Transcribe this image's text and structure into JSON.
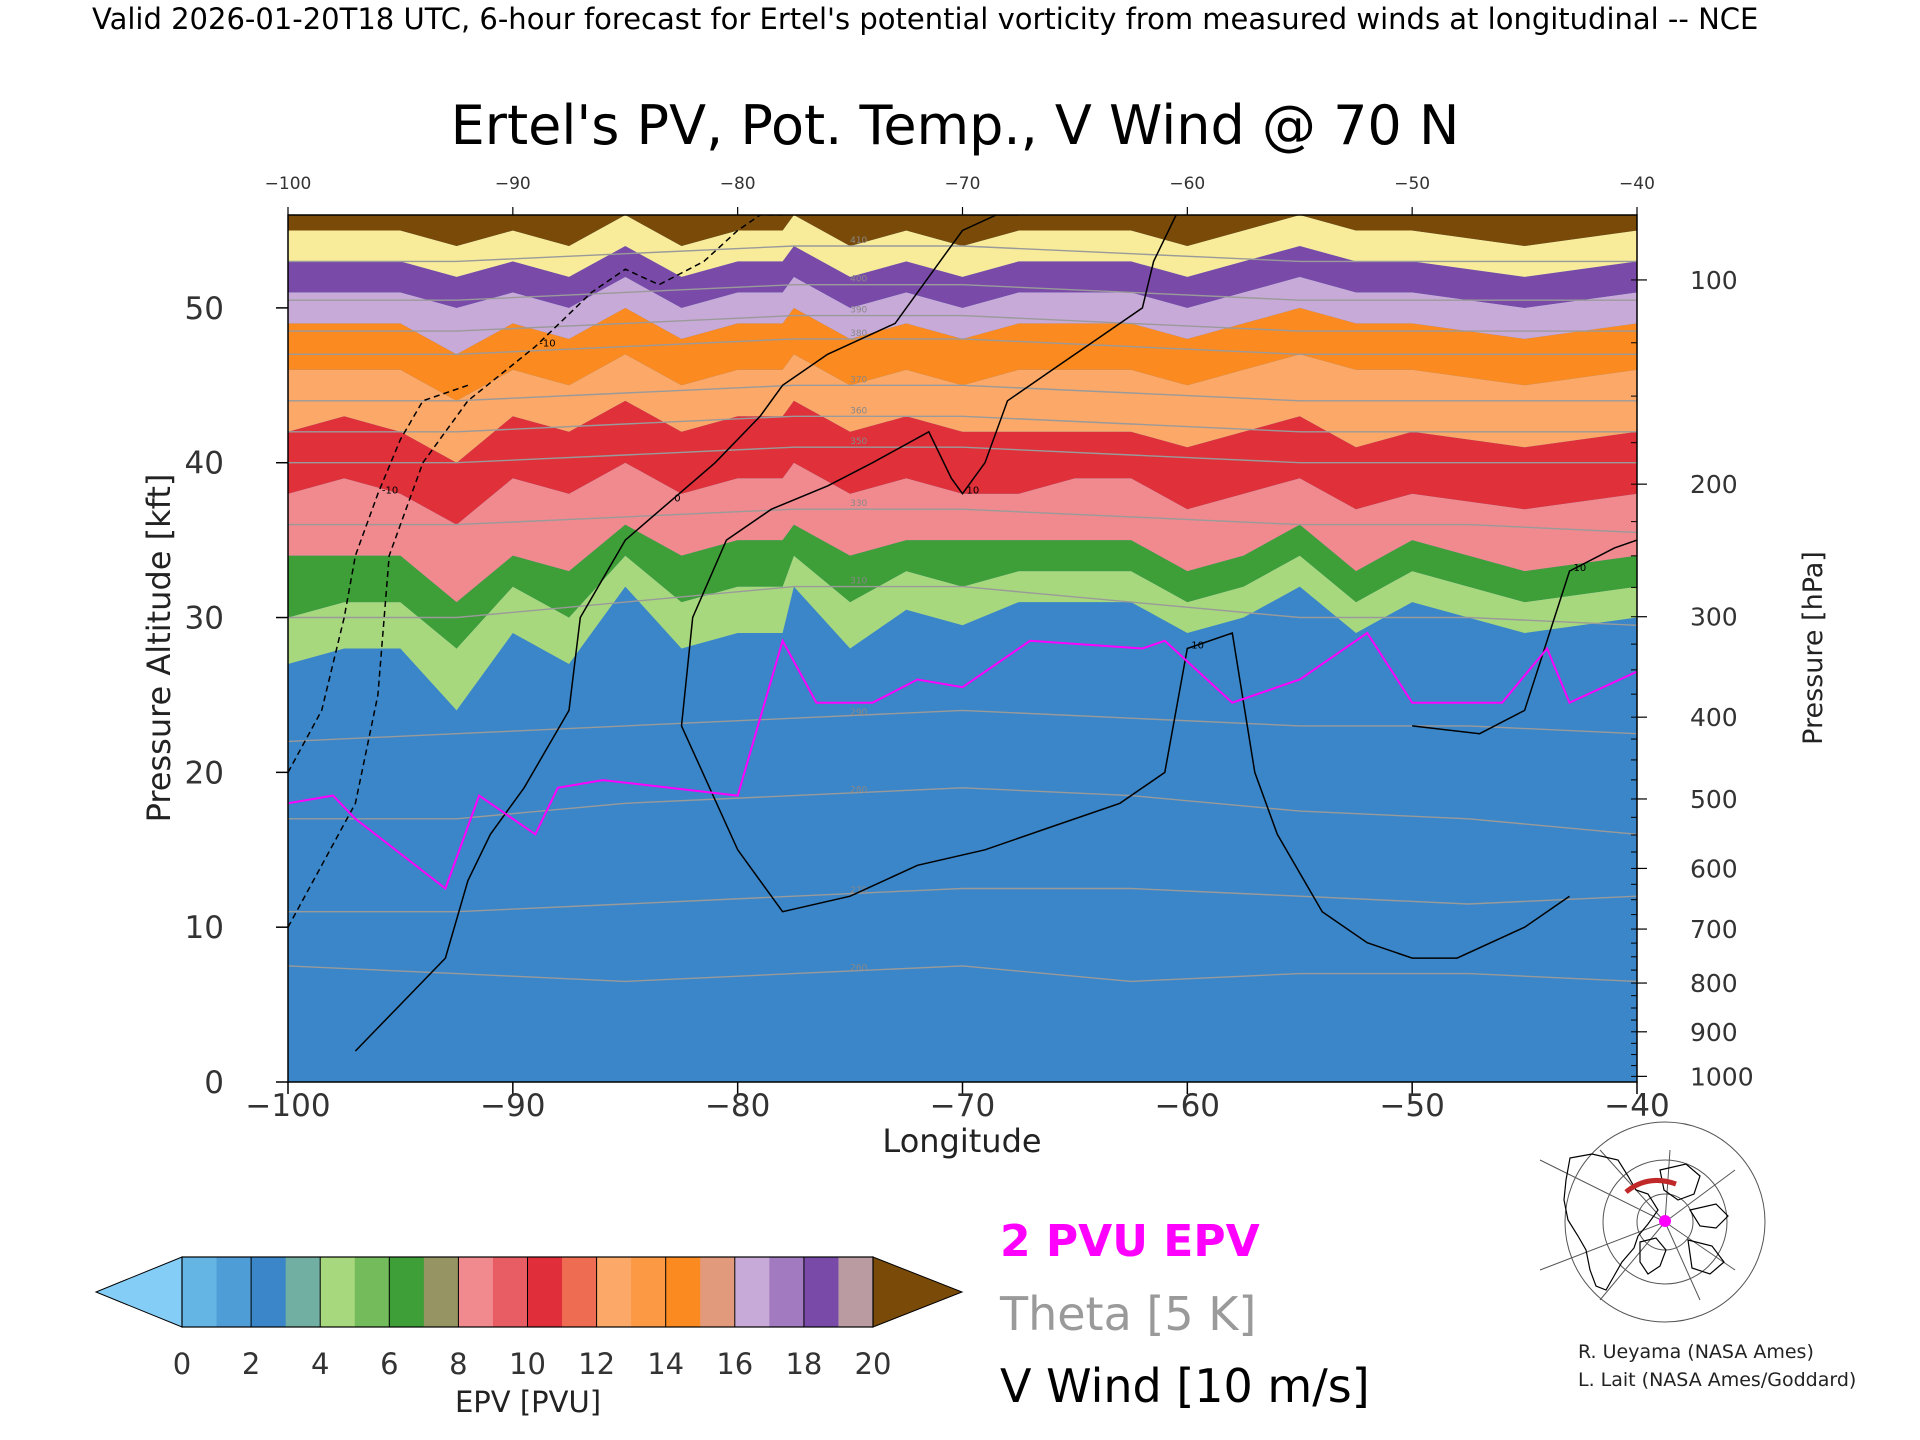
{
  "header": {
    "valid_line": "Valid 2026-01-20T18 UTC, 6-hour forecast for Ertel's potential vorticity from measured winds at longitudinal -- NCE"
  },
  "chart_data": {
    "type": "heatmap",
    "title": "Ertel's PV, Pot. Temp., V Wind @ 70 N",
    "xlabel": "Longitude",
    "ylabel_left": "Pressure Altitude [kft]",
    "ylabel_right": "Pressure [hPa]",
    "xlim": [
      -100,
      -40
    ],
    "ylim": [
      0,
      56
    ],
    "x_ticks": [
      -100,
      -90,
      -80,
      -70,
      -60,
      -50,
      -40
    ],
    "x_tick_labels": [
      "−100",
      "−90",
      "−80",
      "−70",
      "−60",
      "−50",
      "−40"
    ],
    "top_tick_labels": [
      "−100",
      "−90",
      "−80",
      "−70",
      "−60",
      "−50",
      "−40"
    ],
    "y_ticks": [
      0,
      10,
      20,
      30,
      40,
      50
    ],
    "y_tick_labels": [
      "0",
      "10",
      "20",
      "30",
      "40",
      "50"
    ],
    "pressure_ticks": [
      {
        "hpa": 100,
        "label": "100"
      },
      {
        "hpa": 200,
        "label": "200"
      },
      {
        "hpa": 300,
        "label": "300"
      },
      {
        "hpa": 400,
        "label": "400"
      },
      {
        "hpa": 500,
        "label": "500"
      },
      {
        "hpa": 600,
        "label": "600"
      },
      {
        "hpa": 700,
        "label": "700"
      },
      {
        "hpa": 800,
        "label": "800"
      },
      {
        "hpa": 900,
        "label": "900"
      },
      {
        "hpa": 1000,
        "label": "1000"
      }
    ],
    "epv_bands": [
      {
        "pvu": 0,
        "kft": [
          18,
          18.5,
          17,
          12.5,
          18.5,
          16,
          19.5,
          19.5,
          18.5,
          18.5,
          29,
          24.5,
          26,
          25.5,
          28,
          28.5,
          28,
          24.5,
          26,
          29,
          24.5,
          28,
          24.5,
          26.5
        ]
      },
      {
        "pvu": 2,
        "kft": [
          27,
          28,
          28,
          24,
          29,
          27,
          32,
          28,
          29,
          29,
          32,
          28,
          30.5,
          29.5,
          31,
          31,
          31,
          29,
          30,
          32,
          29,
          31,
          29,
          30
        ]
      },
      {
        "pvu": 4,
        "kft": [
          30,
          31,
          31,
          28,
          32,
          30,
          34,
          31,
          32,
          32,
          34,
          31,
          33,
          32,
          33,
          33,
          33,
          31,
          32,
          34,
          31,
          33,
          31,
          32
        ]
      },
      {
        "pvu": 6,
        "kft": [
          34,
          34,
          34,
          31,
          34,
          33,
          36,
          34,
          35,
          35,
          36,
          34,
          35,
          35,
          35,
          35,
          35,
          33,
          34,
          36,
          33,
          35,
          33,
          34
        ]
      },
      {
        "pvu": 8,
        "kft": [
          38,
          39,
          38,
          36,
          39,
          38,
          40,
          38,
          39,
          39,
          40,
          38,
          39,
          38,
          38,
          39,
          39,
          37,
          38,
          39,
          37,
          38,
          37,
          38
        ]
      },
      {
        "pvu": 10,
        "kft": [
          42,
          43,
          42,
          40,
          43,
          42,
          44,
          42,
          43,
          43,
          44,
          42,
          43,
          42,
          42,
          42,
          42,
          41,
          42,
          43,
          41,
          42,
          41,
          42
        ]
      },
      {
        "pvu": 12,
        "kft": [
          46,
          46,
          46,
          44,
          46,
          45,
          47,
          45,
          46,
          46,
          47,
          45,
          46,
          45,
          46,
          46,
          46,
          45,
          46,
          47,
          46,
          46,
          45,
          46
        ]
      },
      {
        "pvu": 14,
        "kft": [
          49,
          49,
          49,
          47,
          49,
          48,
          50,
          48,
          49,
          49,
          50,
          48,
          49,
          48,
          49,
          49,
          49,
          48,
          49,
          50,
          49,
          49,
          48,
          49
        ]
      },
      {
        "pvu": 16,
        "kft": [
          51,
          51,
          51,
          50,
          51,
          50,
          52,
          50,
          51,
          51,
          52,
          50,
          51,
          50,
          51,
          51,
          51,
          50,
          51,
          52,
          51,
          51,
          50,
          51
        ]
      },
      {
        "pvu": 18,
        "kft": [
          53,
          53,
          53,
          52,
          53,
          52,
          54,
          52,
          53,
          53,
          54,
          52,
          53,
          52,
          53,
          53,
          53,
          52,
          53,
          54,
          53,
          53,
          52,
          53
        ]
      },
      {
        "pvu": 20,
        "kft": [
          55,
          55,
          55,
          54,
          55,
          54,
          56,
          54,
          55,
          55,
          56,
          54,
          55,
          54,
          55,
          55,
          55,
          54,
          55,
          56,
          55,
          55,
          54,
          55
        ]
      }
    ],
    "epv_lons": [
      -100,
      -97.5,
      -95,
      -92.5,
      -90,
      -87.5,
      -85,
      -82.5,
      -80,
      -78,
      -77.5,
      -75,
      -72.5,
      -70,
      -67.5,
      -65,
      -62.5,
      -60,
      -57.5,
      -55,
      -52.5,
      -50,
      -45,
      -40
    ],
    "pv2_line": {
      "name": "2 PVU EPV",
      "lon": [
        -100,
        -98,
        -97,
        -93,
        -91.5,
        -89,
        -88,
        -86,
        -80,
        -78,
        -76.5,
        -74,
        -72,
        -70,
        -67,
        -62,
        -61,
        -58,
        -55,
        -52,
        -50,
        -46,
        -44,
        -43,
        -40
      ],
      "kft": [
        18,
        18.5,
        17,
        12.5,
        18.5,
        16,
        19,
        19.5,
        18.5,
        28.5,
        24.5,
        24.5,
        26,
        25.5,
        28.5,
        28,
        28.5,
        24.5,
        26,
        29,
        24.5,
        24.5,
        28,
        24.5,
        26.5
      ]
    },
    "theta_levels": [
      {
        "label": "260",
        "kft": [
          7.5,
          7,
          6.5,
          7,
          7.5,
          6.5,
          7,
          7,
          6.5
        ]
      },
      {
        "label": "270",
        "kft": [
          11,
          11,
          11.5,
          12,
          12.5,
          12.5,
          12,
          11.5,
          12
        ]
      },
      {
        "label": "280",
        "kft": [
          17,
          17,
          18,
          18.5,
          19,
          18.5,
          17.5,
          17,
          16
        ]
      },
      {
        "label": "290",
        "kft": [
          22,
          22.5,
          23,
          23.5,
          24,
          23.5,
          23,
          23,
          22.5
        ]
      },
      {
        "label": "310",
        "kft": [
          30,
          30,
          31,
          32,
          32,
          31,
          30,
          30,
          29.5
        ]
      },
      {
        "label": "330",
        "kft": [
          36,
          36,
          36.5,
          37,
          37,
          36.5,
          36,
          36,
          35.5
        ]
      },
      {
        "label": "350",
        "kft": [
          40,
          40,
          40.5,
          41,
          41,
          40.5,
          40,
          40,
          40
        ]
      },
      {
        "label": "360",
        "kft": [
          42,
          42,
          42.5,
          43,
          43,
          42.5,
          42,
          42,
          42
        ]
      },
      {
        "label": "370",
        "kft": [
          44,
          44,
          44.5,
          45,
          45,
          44.5,
          44,
          44,
          44
        ]
      },
      {
        "label": "380",
        "kft": [
          47,
          47,
          47.5,
          48,
          48,
          47.5,
          47,
          47,
          47
        ]
      },
      {
        "label": "390",
        "kft": [
          48.5,
          48.5,
          49,
          49.5,
          49.5,
          49,
          48.5,
          48.5,
          48.5
        ]
      },
      {
        "label": "400",
        "kft": [
          50.5,
          50.5,
          51,
          51.5,
          51.5,
          51,
          50.5,
          50.5,
          50.5
        ]
      },
      {
        "label": "410",
        "kft": [
          53,
          53,
          53.5,
          54,
          54,
          53.5,
          53,
          53,
          53
        ]
      }
    ],
    "theta_lons": [
      -100,
      -92.5,
      -85,
      -77.5,
      -70,
      -62.5,
      -55,
      -47.5,
      -40
    ],
    "v_wind_contours": [
      {
        "label": "0",
        "dashed": false,
        "lon": [
          -97,
          -95,
          -93,
          -92,
          -91,
          -89.5,
          -87.5,
          -87,
          -85,
          -83,
          -81,
          -79,
          -78,
          -76,
          -73,
          -71,
          -70,
          -68.5,
          -67.5
        ],
        "kft": [
          2,
          5,
          8,
          13,
          16,
          19,
          24,
          30,
          35,
          37.5,
          40,
          43,
          45,
          47,
          49,
          53,
          55,
          56,
          56
        ]
      },
      {
        "label": "10",
        "dashed": false,
        "lon": [
          -82.5,
          -82,
          -80.5,
          -78.5,
          -76,
          -74,
          -71.5,
          -70.5,
          -70,
          -69,
          -68,
          -66,
          -64,
          -62,
          -61.5,
          -60.5
        ],
        "kft": [
          23,
          30,
          35,
          37,
          38.5,
          40,
          42,
          39,
          38,
          40,
          44,
          46,
          48,
          50,
          53,
          56
        ]
      },
      {
        "label": "10",
        "dashed": false,
        "lon": [
          -82.5,
          -80,
          -78,
          -75,
          -72,
          -69,
          -66,
          -63,
          -61,
          -60,
          -58,
          -57,
          -56,
          -54,
          -52,
          -50,
          -48,
          -45,
          -43
        ],
        "kft": [
          23,
          15,
          11,
          12,
          14,
          15,
          16.5,
          18,
          20,
          28,
          29,
          20,
          16,
          11,
          9,
          8,
          8,
          10,
          12
        ]
      },
      {
        "label": "10",
        "dashed": false,
        "lon": [
          -50,
          -47,
          -45,
          -43,
          -41,
          -40
        ],
        "kft": [
          23,
          22.5,
          24,
          33,
          34.5,
          35
        ]
      },
      {
        "label": "-10",
        "dashed": true,
        "lon": [
          -100,
          -98.5,
          -97,
          -96,
          -95.5,
          -94,
          -92,
          -89,
          -86.5,
          -85,
          -83.5,
          -81.5,
          -80,
          -79,
          -78
        ],
        "kft": [
          10,
          14,
          18,
          25,
          34,
          40,
          44,
          47.5,
          51,
          52.5,
          51.5,
          53,
          55,
          56,
          56
        ]
      },
      {
        "label": "-10",
        "dashed": true,
        "lon": [
          -100,
          -98.5,
          -97.5,
          -97,
          -96,
          -95,
          -94,
          -92
        ],
        "kft": [
          20,
          24,
          30,
          34,
          38,
          41.5,
          44,
          45
        ]
      }
    ],
    "colorbar": {
      "label": "EPV [PVU]",
      "tick_labels": [
        "0",
        "2",
        "4",
        "6",
        "8",
        "10",
        "12",
        "14",
        "16",
        "18",
        "20"
      ],
      "colors": [
        "#64b4e4",
        "#3a86c8",
        "#a8d87e",
        "#3e9e38",
        "#f08a8e",
        "#e0303a",
        "#fba868",
        "#fb8a20",
        "#c8aad8",
        "#7a4aa8",
        "#f8ec9a"
      ],
      "under_color": "#84cdf6",
      "over_color": "#7a4a08"
    },
    "legend": {
      "pv2": "2 PVU EPV",
      "theta": "Theta [5 K]",
      "vwind": "V Wind [10 m/s]",
      "pv2_color": "#ff00ff",
      "theta_color": "#9a9a9a",
      "vwind_color": "#000000"
    }
  },
  "credits": {
    "line1": "R. Ueyama (NASA Ames)",
    "line2": "L. Lait (NASA Ames/Goddard)"
  },
  "inset_map": {
    "icon": "polar-stereographic-locator-map",
    "section_color": "#c0282a",
    "marker_color": "#ff00ff"
  }
}
